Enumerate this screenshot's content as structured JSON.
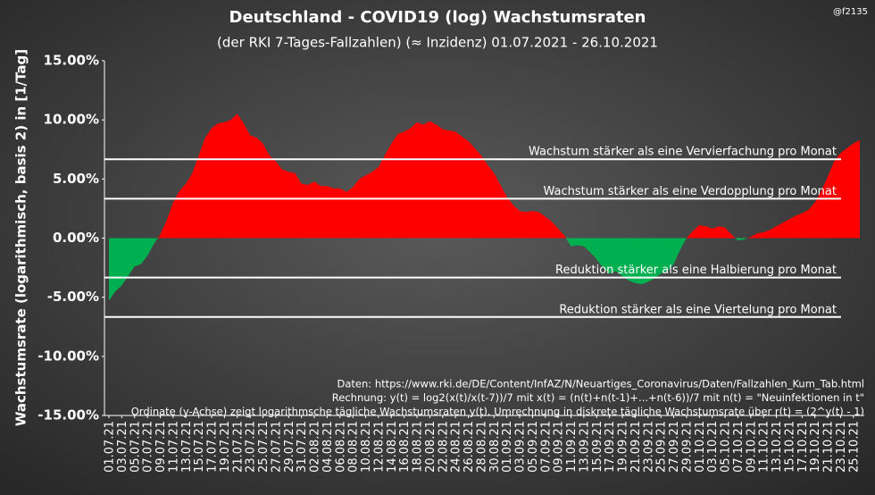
{
  "chart_data": {
    "type": "area",
    "title": "Deutschland - COVID19  (log) Wachstumsraten",
    "subtitle": "(der RKI 7-Tages-Fallzahlen) (≈ Inzidenz) 01.07.2021 - 26.10.2021",
    "watermark": "@f2135",
    "y_label": "Wachstumsrate (logarithmisch, basis 2) in [1/Tag]",
    "categories": [
      "01.07.21",
      null,
      "03.07.21",
      null,
      "05.07.21",
      null,
      "07.07.21",
      null,
      "09.07.21",
      null,
      "11.07.21",
      null,
      "13.07.21",
      null,
      "15.07.21",
      null,
      "17.07.21",
      null,
      "19.07.21",
      null,
      "21.07.21",
      null,
      "23.07.21",
      null,
      "25.07.21",
      null,
      "27.07.21",
      null,
      "29.07.21",
      null,
      "31.07.21",
      null,
      "02.08.21",
      null,
      "04.08.21",
      null,
      "06.08.21",
      null,
      "08.08.21",
      null,
      "10.08.21",
      null,
      "12.08.21",
      null,
      "14.08.21",
      null,
      "16.08.21",
      null,
      "18.08.21",
      null,
      "20.08.21",
      null,
      "22.08.21",
      null,
      "24.08.21",
      null,
      "26.08.21",
      null,
      "28.08.21",
      null,
      "30.08.21",
      null,
      "01.09.21",
      null,
      "03.09.21",
      null,
      "05.09.21",
      null,
      "07.09.21",
      null,
      "09.09.21",
      null,
      "11.09.21",
      null,
      "13.09.21",
      null,
      "15.09.21",
      null,
      "17.09.21",
      null,
      "19.09.21",
      null,
      "21.09.21",
      null,
      "23.09.21",
      null,
      "25.09.21",
      null,
      "27.09.21",
      null,
      "29.09.21",
      null,
      "01.10.21",
      null,
      "03.10.21",
      null,
      "05.10.21",
      null,
      "07.10.21",
      null,
      "09.10.21",
      null,
      "11.10.21",
      null,
      "13.10.21",
      null,
      "15.10.21",
      null,
      "17.10.21",
      null,
      "19.10.21",
      null,
      "21.10.21",
      null,
      "23.10.21",
      null,
      "25.10.21",
      null
    ],
    "values": [
      -5.3,
      -4.5,
      -4.0,
      -3.2,
      -2.4,
      -2.2,
      -1.5,
      -0.5,
      0.3,
      1.5,
      3.0,
      4.0,
      4.6,
      5.5,
      7.0,
      8.5,
      9.3,
      9.7,
      9.8,
      10.0,
      10.5,
      9.7,
      8.7,
      8.5,
      8.0,
      7.0,
      6.5,
      5.8,
      5.6,
      5.5,
      4.6,
      4.5,
      4.8,
      4.4,
      4.4,
      4.2,
      4.2,
      3.9,
      4.3,
      5.0,
      5.3,
      5.6,
      6.0,
      7.0,
      8.0,
      8.8,
      9.0,
      9.3,
      9.8,
      9.6,
      9.9,
      9.6,
      9.2,
      9.1,
      9.0,
      8.6,
      8.2,
      7.6,
      7.0,
      6.2,
      5.5,
      4.5,
      3.5,
      2.8,
      2.3,
      2.2,
      2.3,
      2.2,
      1.8,
      1.4,
      0.8,
      0.2,
      -0.7,
      -0.6,
      -0.7,
      -1.2,
      -1.8,
      -2.5,
      -3.0,
      -2.8,
      -3.2,
      -3.6,
      -3.8,
      -3.9,
      -3.7,
      -3.4,
      -3.0,
      -2.8,
      -2.2,
      -1.0,
      0.0,
      0.6,
      1.1,
      1.0,
      0.8,
      1.0,
      0.9,
      0.3,
      -0.2,
      -0.1,
      0.1,
      0.4,
      0.5,
      0.7,
      1.0,
      1.3,
      1.6,
      1.9,
      2.1,
      2.4,
      3.0,
      4.0,
      5.2,
      6.5,
      7.2,
      7.6,
      8.0,
      8.3
    ],
    "color": "#ff0000",
    "negative_color": "#00b050",
    "ylim": [
      -15,
      15
    ],
    "yticks": [
      {
        "value": 15,
        "label": "15.00%"
      },
      {
        "value": 10,
        "label": "10.00%"
      },
      {
        "value": 5,
        "label": "5.00%"
      },
      {
        "value": 0,
        "label": "0.00%"
      },
      {
        "value": -5,
        "label": "-5.00%"
      },
      {
        "value": -10,
        "label": "-10.00%"
      },
      {
        "value": -15,
        "label": "-15.00%"
      }
    ],
    "reference_lines": [
      {
        "value": 6.67,
        "label": "Wachstum stärker als eine Vervierfachung pro Monat"
      },
      {
        "value": 3.33,
        "label": "Wachstum stärker als eine Verdopplung pro Monat"
      },
      {
        "value": -3.33,
        "label": "Reduktion stärker als eine Halbierung pro Monat"
      },
      {
        "value": -6.67,
        "label": "Reduktion stärker als eine Viertelung pro Monat"
      }
    ],
    "footnotes": [
      "Daten: https://www.rki.de/DE/Content/InfAZ/N/Neuartiges_Coronavirus/Daten/Fallzahlen_Kum_Tab.html",
      "Rechnung: y(t) = log2(x(t)/x(t-7))/7 mit x(t) = (n(t)+n(t-1)+...+n(t-6))/7 mit n(t) = \"Neuinfektionen in t\"",
      "Ordinate (y-Achse) zeigt logarithmsche tägliche Wachstumsraten y(t). Umrechnung in diskrete tägliche Wachstumsrate über r(t) = (2^y(t) - 1)"
    ]
  }
}
